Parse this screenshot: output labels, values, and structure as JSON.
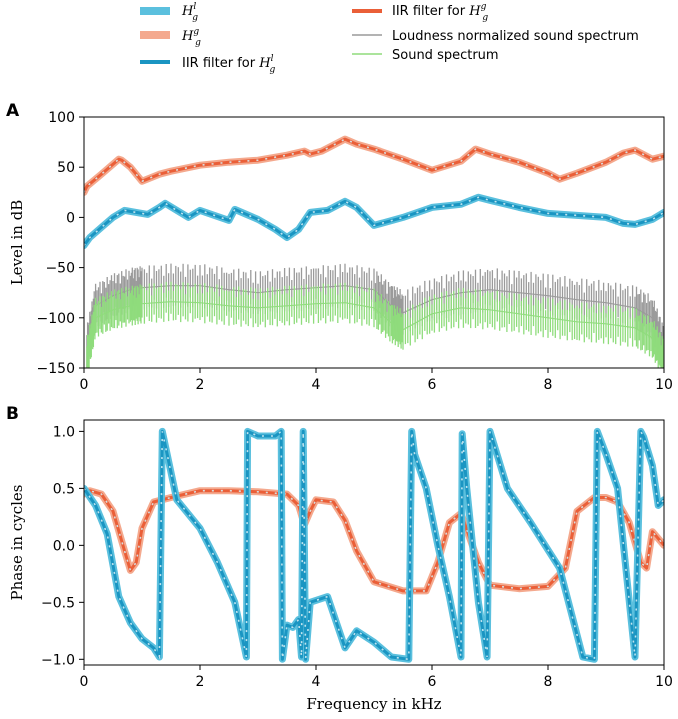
{
  "colors": {
    "blue_thick": "#5bc0de",
    "blue_iir": "#1a95c2",
    "orange_thick": "#f4a98e",
    "orange_iir": "#ea5f38",
    "gray": "#9a9a9a",
    "green": "#8fdc7c",
    "dash_overlay": "#d4ecf3",
    "axis": "#000000"
  },
  "legend": {
    "items": [
      {
        "key": "hl",
        "base": "H",
        "sup": "l",
        "sub": "g",
        "style": "thick-blue"
      },
      {
        "key": "hg",
        "base": "H",
        "sup": "g",
        "sub": "g",
        "style": "thick-orange"
      },
      {
        "key": "iir_l",
        "label": "IIR filter for ",
        "base": "H",
        "sup": "l",
        "sub": "g",
        "style": "iir-blue"
      },
      {
        "key": "iir_g",
        "label": "IIR filter for ",
        "base": "H",
        "sup": "g",
        "sub": "g",
        "style": "iir-orange"
      },
      {
        "key": "loud",
        "label": "Loudness normalized sound spectrum",
        "style": "gray"
      },
      {
        "key": "sound",
        "label": "Sound spectrum",
        "style": "green"
      }
    ]
  },
  "chart_data": [
    {
      "panel_label": "A",
      "type": "line",
      "xlabel": "",
      "ylabel": "Level in dB",
      "xlim": [
        0,
        10
      ],
      "ylim": [
        -150,
        100
      ],
      "xticks": [
        0,
        2,
        4,
        6,
        8,
        10
      ],
      "yticks": [
        -150,
        -100,
        -50,
        0,
        50,
        100
      ],
      "series": [
        {
          "name": "H^g_g / IIR filter for H^g_g",
          "color": "orange",
          "x": [
            0,
            0.05,
            0.3,
            0.6,
            0.65,
            0.8,
            1.0,
            1.3,
            1.5,
            2.0,
            2.5,
            3.0,
            3.5,
            3.8,
            3.9,
            4.1,
            4.5,
            4.7,
            5.0,
            5.5,
            6.0,
            6.5,
            6.75,
            7.0,
            7.5,
            8.0,
            8.2,
            8.5,
            9.0,
            9.3,
            9.5,
            9.8,
            10.0
          ],
          "y": [
            25,
            31,
            43,
            58,
            57,
            50,
            36,
            43,
            46,
            52,
            55,
            57,
            62,
            66,
            63,
            66,
            78,
            73,
            68,
            58,
            47,
            56,
            68,
            63,
            55,
            44,
            38,
            44,
            55,
            64,
            67,
            58,
            61
          ]
        },
        {
          "name": "H^l_g / IIR filter for H^l_g",
          "color": "blue",
          "x": [
            0,
            0.1,
            0.3,
            0.5,
            0.7,
            0.9,
            1.1,
            1.3,
            1.4,
            1.6,
            1.8,
            2.0,
            2.2,
            2.5,
            2.6,
            2.8,
            3.0,
            3.3,
            3.5,
            3.7,
            3.9,
            4.2,
            4.5,
            4.7,
            5.0,
            5.5,
            6.0,
            6.5,
            6.8,
            7.0,
            7.5,
            8.0,
            8.5,
            9.0,
            9.3,
            9.5,
            9.8,
            10.0
          ],
          "y": [
            -28,
            -20,
            -10,
            0,
            7,
            5,
            3,
            10,
            14,
            7,
            0,
            7,
            3,
            -3,
            8,
            3,
            -2,
            -12,
            -20,
            -12,
            5,
            7,
            16,
            10,
            -8,
            0,
            10,
            13,
            20,
            17,
            10,
            4,
            2,
            0,
            -6,
            -7,
            -2,
            5
          ]
        },
        {
          "name": "Loudness normalized sound spectrum",
          "color": "gray",
          "x": [
            0.05,
            0.2,
            0.5,
            0.8,
            1.0,
            1.5,
            2.0,
            2.5,
            3.0,
            3.5,
            4.0,
            4.5,
            5.0,
            5.3,
            5.5,
            6.0,
            6.5,
            7.0,
            7.5,
            8.0,
            8.5,
            9.0,
            9.5,
            9.8,
            10.0
          ],
          "y": [
            -130,
            -88,
            -78,
            -72,
            -70,
            -68,
            -68,
            -72,
            -75,
            -72,
            -70,
            -68,
            -72,
            -88,
            -95,
            -82,
            -75,
            -72,
            -75,
            -78,
            -82,
            -85,
            -90,
            -100,
            -130
          ]
        },
        {
          "name": "Sound spectrum",
          "color": "green",
          "x": [
            0.05,
            0.2,
            0.5,
            0.8,
            1.0,
            1.5,
            2.0,
            2.5,
            3.0,
            3.5,
            4.0,
            4.5,
            5.0,
            5.3,
            5.5,
            6.0,
            6.5,
            7.0,
            7.5,
            8.0,
            8.5,
            9.0,
            9.5,
            9.8,
            10.0
          ],
          "y": [
            -140,
            -100,
            -92,
            -88,
            -86,
            -84,
            -85,
            -88,
            -90,
            -88,
            -86,
            -85,
            -90,
            -105,
            -112,
            -96,
            -90,
            -92,
            -96,
            -100,
            -104,
            -106,
            -110,
            -120,
            -140
          ]
        }
      ]
    },
    {
      "panel_label": "B",
      "type": "line",
      "xlabel": "Frequency in kHz",
      "ylabel": "Phase in cycles",
      "xlim": [
        0,
        10
      ],
      "ylim": [
        -1.05,
        1.1
      ],
      "xticks": [
        0,
        2,
        4,
        6,
        8,
        10
      ],
      "yticks": [
        -1.0,
        -0.5,
        0.0,
        0.5,
        1.0
      ],
      "series": [
        {
          "name": "H^g_g / IIR filter for H^g_g",
          "color": "orange",
          "x": [
            0,
            0.1,
            0.3,
            0.5,
            0.7,
            0.8,
            0.9,
            1.0,
            1.2,
            1.5,
            2.0,
            2.5,
            3.0,
            3.5,
            3.7,
            3.8,
            3.9,
            4.0,
            4.3,
            4.5,
            4.7,
            5.0,
            5.5,
            5.9,
            6.1,
            6.3,
            6.5,
            6.8,
            7.0,
            7.5,
            8.0,
            8.3,
            8.5,
            8.8,
            9.0,
            9.2,
            9.4,
            9.6,
            9.7,
            9.8,
            10.0
          ],
          "y": [
            0.45,
            0.48,
            0.45,
            0.3,
            -0.05,
            -0.22,
            -0.15,
            0.15,
            0.38,
            0.42,
            0.48,
            0.48,
            0.47,
            0.45,
            0.35,
            0.18,
            0.3,
            0.4,
            0.38,
            0.22,
            -0.05,
            -0.32,
            -0.4,
            -0.4,
            -0.15,
            0.2,
            0.28,
            -0.15,
            -0.35,
            -0.38,
            -0.36,
            -0.2,
            0.3,
            0.42,
            0.42,
            0.38,
            0.2,
            -0.15,
            -0.2,
            0.12,
            0.0
          ]
        },
        {
          "name": "H^l_g / IIR filter for H^l_g",
          "color": "blue",
          "x": [
            0,
            0.2,
            0.4,
            0.6,
            0.8,
            1.0,
            1.2,
            1.3,
            1.35,
            1.6,
            2.0,
            2.3,
            2.6,
            2.8,
            2.82,
            3.0,
            3.3,
            3.4,
            3.42,
            3.5,
            3.6,
            3.7,
            3.75,
            3.78,
            3.82,
            3.9,
            4.2,
            4.5,
            4.7,
            5.0,
            5.3,
            5.6,
            5.65,
            5.7,
            5.9,
            6.1,
            6.3,
            6.5,
            6.52,
            6.6,
            6.8,
            6.95,
            7.0,
            7.3,
            7.7,
            8.2,
            8.6,
            8.8,
            8.85,
            9.0,
            9.2,
            9.5,
            9.6,
            9.65,
            9.8,
            9.9,
            10.0
          ],
          "y": [
            0.5,
            0.35,
            0.1,
            -0.45,
            -0.68,
            -0.82,
            -0.9,
            -0.98,
            1.0,
            0.4,
            0.15,
            -0.15,
            -0.5,
            -0.98,
            1.0,
            0.96,
            0.96,
            1.0,
            -1.0,
            -0.7,
            -0.72,
            -0.65,
            -0.98,
            1.0,
            -1.0,
            -0.5,
            -0.45,
            -0.9,
            -0.75,
            -0.85,
            -0.98,
            -1.0,
            1.0,
            0.8,
            0.5,
            0.0,
            -0.45,
            -0.98,
            0.98,
            0.5,
            -0.5,
            -0.98,
            1.0,
            0.5,
            0.2,
            -0.2,
            -0.98,
            -1.0,
            1.0,
            0.8,
            0.5,
            -0.98,
            1.0,
            0.95,
            0.7,
            0.35,
            0.4
          ]
        }
      ]
    }
  ]
}
